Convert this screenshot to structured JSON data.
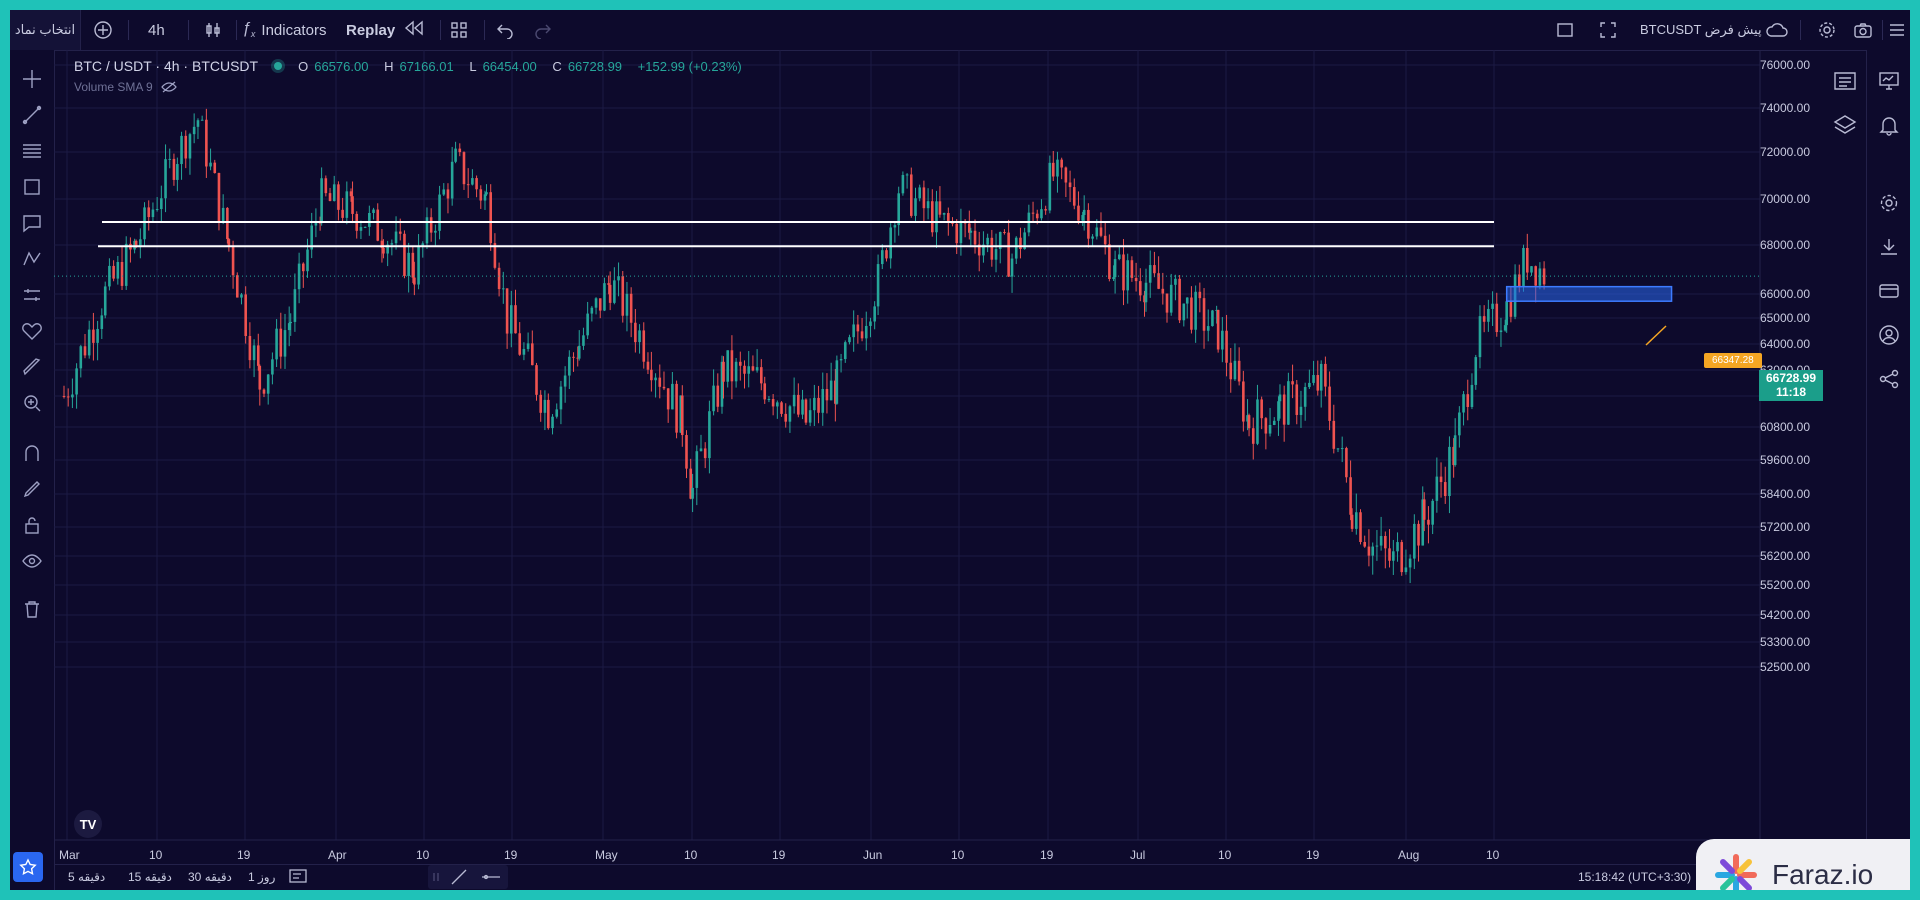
{
  "topbar": {
    "symbol_picker": "انتخاب نماد",
    "interval": "4h",
    "indicators_label": "Indicators",
    "replay_label": "Replay",
    "preset_symbol": "BTCUSDT پیش فرض"
  },
  "legend": {
    "title": "BTC / USDT · 4h · BTCUSDT",
    "open_key": "O",
    "open": "66576.00",
    "high_key": "H",
    "high": "67166.01",
    "low_key": "L",
    "low": "66454.00",
    "close_key": "C",
    "close": "66728.99",
    "change": "+152.99 (+0.23%)",
    "volume_label": "Volume SMA 9"
  },
  "price_axis": [
    "76000.00",
    "74000.00",
    "72000.00",
    "70000.00",
    "68000.00",
    "66000.00",
    "65000.00",
    "64000.00",
    "63000.00",
    "62000.00",
    "60800.00",
    "59600.00",
    "58400.00",
    "57200.00",
    "56200.00",
    "55200.00",
    "54200.00",
    "53300.00",
    "52500.00"
  ],
  "current_price": {
    "price": "66728.99",
    "countdown": "11:18"
  },
  "callout_price": "66347.28",
  "date_axis": [
    "Mar",
    "10",
    "19",
    "Apr",
    "10",
    "19",
    "May",
    "10",
    "19",
    "Jun",
    "10",
    "19",
    "Jul",
    "10",
    "19",
    "Aug",
    "10"
  ],
  "bottombar": {
    "ranges": [
      "5 دقیقه",
      "15 دقیقه",
      "30 دقیقه",
      "1 روز"
    ],
    "clock": "15:18:42 (UTC+3:30)"
  },
  "watermark": "Faraz.io",
  "colors": {
    "up": "#26a69a",
    "down": "#ef5350",
    "background": "#0d0a2c",
    "accent": "#2a67f0",
    "callout": "#f5a623"
  },
  "chart_data": {
    "type": "candlestick",
    "title": "BTC / USDT · 4h · BTCUSDT",
    "x_range": [
      "2024-03-01",
      "2024-08-12"
    ],
    "ylim": [
      52500,
      76000
    ],
    "grid": true,
    "daily_closes_approx": [
      [
        "2024-03-01",
        62000
      ],
      [
        "2024-03-05",
        66000
      ],
      [
        "2024-03-08",
        68000
      ],
      [
        "2024-03-12",
        72000
      ],
      [
        "2024-03-14",
        73500
      ],
      [
        "2024-03-17",
        68000
      ],
      [
        "2024-03-20",
        62500
      ],
      [
        "2024-03-23",
        65000
      ],
      [
        "2024-03-26",
        70000
      ],
      [
        "2024-03-29",
        69500
      ],
      [
        "2024-04-01",
        68500
      ],
      [
        "2024-04-04",
        67000
      ],
      [
        "2024-04-08",
        71500
      ],
      [
        "2024-04-11",
        70000
      ],
      [
        "2024-04-13",
        65000
      ],
      [
        "2024-04-17",
        61500
      ],
      [
        "2024-04-20",
        64000
      ],
      [
        "2024-04-23",
        66500
      ],
      [
        "2024-04-27",
        63500
      ],
      [
        "2024-04-30",
        61000
      ],
      [
        "2024-05-01",
        58500
      ],
      [
        "2024-05-04",
        63000
      ],
      [
        "2024-05-08",
        62500
      ],
      [
        "2024-05-12",
        61000
      ],
      [
        "2024-05-15",
        62500
      ],
      [
        "2024-05-19",
        66500
      ],
      [
        "2024-05-21",
        70500
      ],
      [
        "2024-05-25",
        69000
      ],
      [
        "2024-05-28",
        68500
      ],
      [
        "2024-06-01",
        67500
      ],
      [
        "2024-06-05",
        71000
      ],
      [
        "2024-06-08",
        69500
      ],
      [
        "2024-06-11",
        67000
      ],
      [
        "2024-06-14",
        66500
      ],
      [
        "2024-06-18",
        65500
      ],
      [
        "2024-06-21",
        64500
      ],
      [
        "2024-06-24",
        61000
      ],
      [
        "2024-06-27",
        61500
      ],
      [
        "2024-07-01",
        62500
      ],
      [
        "2024-07-04",
        58000
      ],
      [
        "2024-07-06",
        56500
      ],
      [
        "2024-07-08",
        56000
      ],
      [
        "2024-07-11",
        57500
      ],
      [
        "2024-07-14",
        60000
      ],
      [
        "2024-07-16",
        64000
      ],
      [
        "2024-07-19",
        65500
      ],
      [
        "2024-07-21",
        67500
      ],
      [
        "2024-07-23",
        66700
      ]
    ],
    "horizontal_lines": [
      69000,
      67950
    ],
    "zone": {
      "from": "2024-07-19",
      "to": "2024-08-04",
      "top": 66300,
      "bottom": 65700
    }
  }
}
